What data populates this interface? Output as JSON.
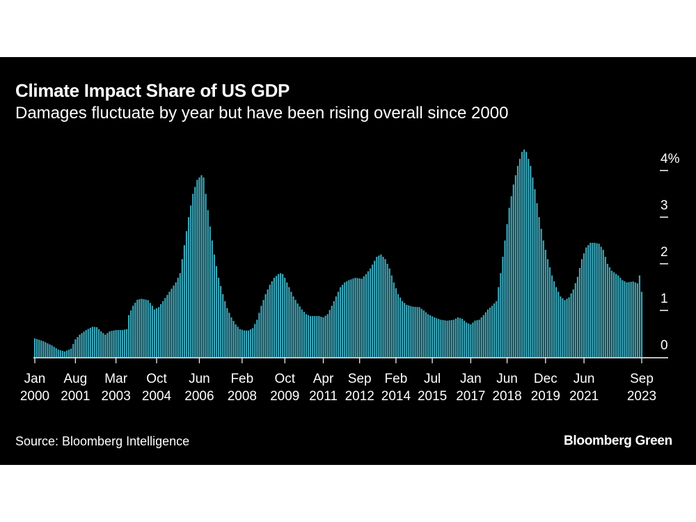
{
  "header": {
    "title": "Climate Impact Share of US GDP",
    "subtitle": "Damages fluctuate by year but have been rising overall since 2000"
  },
  "footer": {
    "source": "Source: Bloomberg Intelligence",
    "brand": "Bloomberg Green"
  },
  "colors": {
    "background": "#000000",
    "bar": "#3aa6b9",
    "text": "#ffffff",
    "axis": "#ffffff"
  },
  "chart_data": {
    "type": "bar",
    "title": "Climate Impact Share of US GDP",
    "subtitle": "Damages fluctuate by year but have been rising overall since 2000",
    "xlabel": "",
    "ylabel": "",
    "ylim": [
      0,
      4.6
    ],
    "y_unit": "%",
    "y_ticks": [
      {
        "value": 4,
        "label": "4%"
      },
      {
        "value": 3,
        "label": "3"
      },
      {
        "value": 2,
        "label": "2"
      },
      {
        "value": 1,
        "label": "1"
      },
      {
        "value": 0,
        "label": "0"
      }
    ],
    "x_start": {
      "year": 2000,
      "month": 1
    },
    "x_end": {
      "year": 2023,
      "month": 9
    },
    "x_ticks": [
      {
        "index": 0,
        "month": "Jan",
        "year": "2000"
      },
      {
        "index": 19,
        "month": "Aug",
        "year": "2001"
      },
      {
        "index": 38,
        "month": "Mar",
        "year": "2003"
      },
      {
        "index": 57,
        "month": "Oct",
        "year": "2004"
      },
      {
        "index": 77,
        "month": "Jun",
        "year": "2006"
      },
      {
        "index": 97,
        "month": "Feb",
        "year": "2008"
      },
      {
        "index": 117,
        "month": "Oct",
        "year": "2009"
      },
      {
        "index": 135,
        "month": "Apr",
        "year": "2011"
      },
      {
        "index": 152,
        "month": "Sep",
        "year": "2012"
      },
      {
        "index": 169,
        "month": "Feb",
        "year": "2014"
      },
      {
        "index": 186,
        "month": "Jul",
        "year": "2015"
      },
      {
        "index": 204,
        "month": "Jan",
        "year": "2017"
      },
      {
        "index": 221,
        "month": "Jun",
        "year": "2018"
      },
      {
        "index": 239,
        "month": "Dec",
        "year": "2019"
      },
      {
        "index": 257,
        "month": "Jun",
        "year": "2021"
      },
      {
        "index": 284,
        "month": "Sep",
        "year": "2023"
      }
    ],
    "anchors": [
      [
        0,
        0.4
      ],
      [
        4,
        0.34
      ],
      [
        8,
        0.25
      ],
      [
        11,
        0.16
      ],
      [
        14,
        0.12
      ],
      [
        17,
        0.18
      ],
      [
        19,
        0.38
      ],
      [
        21,
        0.48
      ],
      [
        24,
        0.58
      ],
      [
        27,
        0.65
      ],
      [
        29,
        0.64
      ],
      [
        31,
        0.55
      ],
      [
        33,
        0.48
      ],
      [
        35,
        0.55
      ],
      [
        38,
        0.58
      ],
      [
        41,
        0.58
      ],
      [
        43,
        0.6
      ],
      [
        44,
        0.9
      ],
      [
        46,
        1.1
      ],
      [
        48,
        1.23
      ],
      [
        50,
        1.25
      ],
      [
        53,
        1.22
      ],
      [
        55,
        1.1
      ],
      [
        56,
        1.02
      ],
      [
        58,
        1.07
      ],
      [
        60,
        1.2
      ],
      [
        63,
        1.4
      ],
      [
        66,
        1.6
      ],
      [
        68,
        1.8
      ],
      [
        70,
        2.4
      ],
      [
        72,
        3.0
      ],
      [
        74,
        3.5
      ],
      [
        76,
        3.8
      ],
      [
        78,
        3.9
      ],
      [
        79,
        3.85
      ],
      [
        80,
        3.5
      ],
      [
        82,
        2.8
      ],
      [
        84,
        2.2
      ],
      [
        86,
        1.7
      ],
      [
        88,
        1.35
      ],
      [
        90,
        1.05
      ],
      [
        92,
        0.85
      ],
      [
        94,
        0.7
      ],
      [
        96,
        0.6
      ],
      [
        98,
        0.57
      ],
      [
        100,
        0.57
      ],
      [
        102,
        0.62
      ],
      [
        104,
        0.8
      ],
      [
        106,
        1.1
      ],
      [
        108,
        1.35
      ],
      [
        110,
        1.55
      ],
      [
        112,
        1.7
      ],
      [
        114,
        1.78
      ],
      [
        115,
        1.8
      ],
      [
        116,
        1.78
      ],
      [
        117,
        1.7
      ],
      [
        119,
        1.5
      ],
      [
        121,
        1.3
      ],
      [
        123,
        1.15
      ],
      [
        125,
        1.02
      ],
      [
        127,
        0.92
      ],
      [
        129,
        0.88
      ],
      [
        131,
        0.88
      ],
      [
        133,
        0.88
      ],
      [
        135,
        0.85
      ],
      [
        137,
        0.92
      ],
      [
        139,
        1.1
      ],
      [
        141,
        1.3
      ],
      [
        143,
        1.5
      ],
      [
        145,
        1.6
      ],
      [
        147,
        1.65
      ],
      [
        150,
        1.7
      ],
      [
        153,
        1.68
      ],
      [
        155,
        1.78
      ],
      [
        157,
        1.9
      ],
      [
        160,
        2.15
      ],
      [
        162,
        2.2
      ],
      [
        164,
        2.1
      ],
      [
        166,
        1.9
      ],
      [
        168,
        1.6
      ],
      [
        170,
        1.35
      ],
      [
        172,
        1.2
      ],
      [
        174,
        1.12
      ],
      [
        177,
        1.08
      ],
      [
        180,
        1.07
      ],
      [
        182,
        1.0
      ],
      [
        184,
        0.92
      ],
      [
        187,
        0.85
      ],
      [
        190,
        0.8
      ],
      [
        193,
        0.78
      ],
      [
        196,
        0.8
      ],
      [
        198,
        0.85
      ],
      [
        200,
        0.82
      ],
      [
        202,
        0.74
      ],
      [
        204,
        0.7
      ],
      [
        206,
        0.78
      ],
      [
        208,
        0.8
      ],
      [
        210,
        0.9
      ],
      [
        212,
        1.02
      ],
      [
        214,
        1.1
      ],
      [
        216,
        1.2
      ],
      [
        218,
        1.8
      ],
      [
        220,
        2.5
      ],
      [
        222,
        3.2
      ],
      [
        224,
        3.7
      ],
      [
        226,
        4.1
      ],
      [
        228,
        4.4
      ],
      [
        229,
        4.45
      ],
      [
        230,
        4.4
      ],
      [
        232,
        4.1
      ],
      [
        234,
        3.6
      ],
      [
        236,
        3.0
      ],
      [
        238,
        2.5
      ],
      [
        240,
        2.1
      ],
      [
        242,
        1.75
      ],
      [
        244,
        1.5
      ],
      [
        246,
        1.3
      ],
      [
        248,
        1.22
      ],
      [
        250,
        1.28
      ],
      [
        252,
        1.45
      ],
      [
        254,
        1.72
      ],
      [
        256,
        2.1
      ],
      [
        258,
        2.35
      ],
      [
        260,
        2.45
      ],
      [
        262,
        2.45
      ],
      [
        264,
        2.43
      ],
      [
        266,
        2.3
      ],
      [
        268,
        2.0
      ],
      [
        270,
        1.85
      ],
      [
        273,
        1.75
      ],
      [
        275,
        1.65
      ],
      [
        277,
        1.6
      ],
      [
        280,
        1.62
      ],
      [
        282,
        1.58
      ],
      [
        283,
        1.75
      ],
      [
        284,
        1.4
      ]
    ]
  }
}
